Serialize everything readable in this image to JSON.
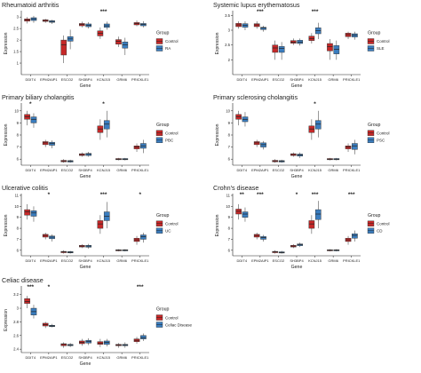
{
  "colors": {
    "control": "#c62828",
    "case": "#3a7dbf",
    "axis": "#222222"
  },
  "common": {
    "genes": [
      "DDIT4",
      "EPM2AIP1",
      "ESCO2",
      "SH3BP4",
      "KCNJ15",
      "GRM6",
      "PRICKLE1"
    ],
    "xlabel": "Gene",
    "ylabel": "Expression",
    "legend_title": "Group"
  },
  "chart_data": [
    {
      "type": "box",
      "title": "Rheumatoid arthritis",
      "case_label": "RA",
      "sig": [
        "",
        "",
        "",
        "",
        "***",
        "",
        ""
      ],
      "ylim": [
        0.5,
        3.2
      ],
      "yticks": [
        1.0,
        1.5,
        2.0,
        2.5,
        3.0
      ],
      "series": [
        {
          "name": "Control",
          "values": [
            [
              2.72,
              2.82,
              2.87,
              2.92,
              3.0
            ],
            [
              2.75,
              2.81,
              2.85,
              2.88,
              2.92
            ],
            [
              1.0,
              1.35,
              1.8,
              2.0,
              2.2
            ],
            [
              2.55,
              2.62,
              2.68,
              2.72,
              2.8
            ],
            [
              2.05,
              2.18,
              2.3,
              2.4,
              2.55
            ],
            [
              1.7,
              1.82,
              1.95,
              2.02,
              2.15
            ],
            [
              2.6,
              2.66,
              2.72,
              2.76,
              2.85
            ]
          ]
        },
        {
          "name": "RA",
          "values": [
            [
              2.75,
              2.85,
              2.92,
              2.97,
              3.05
            ],
            [
              2.7,
              2.77,
              2.81,
              2.84,
              2.88
            ],
            [
              1.6,
              1.95,
              2.05,
              2.15,
              2.45
            ],
            [
              2.5,
              2.58,
              2.64,
              2.7,
              2.78
            ],
            [
              2.45,
              2.55,
              2.62,
              2.7,
              2.8
            ],
            [
              1.35,
              1.65,
              1.8,
              1.92,
              2.1
            ],
            [
              2.55,
              2.62,
              2.68,
              2.72,
              2.82
            ]
          ]
        }
      ]
    },
    {
      "type": "box",
      "title": "Systemic lupus erythematosus",
      "case_label": "SLE",
      "sig": [
        "",
        "***",
        "",
        "",
        "***",
        "",
        ""
      ],
      "ylim": [
        1.5,
        3.6
      ],
      "yticks": [
        2.0,
        2.5,
        3.0,
        3.5
      ],
      "series": [
        {
          "name": "Control",
          "values": [
            [
              3.05,
              3.12,
              3.18,
              3.23,
              3.3
            ],
            [
              3.05,
              3.12,
              3.18,
              3.22,
              3.3
            ],
            [
              2.0,
              2.25,
              2.4,
              2.5,
              2.65
            ],
            [
              2.5,
              2.56,
              2.6,
              2.65,
              2.72
            ],
            [
              2.55,
              2.65,
              2.72,
              2.8,
              2.9
            ],
            [
              2.0,
              2.3,
              2.45,
              2.55,
              2.7
            ],
            [
              2.7,
              2.78,
              2.85,
              2.9,
              2.95
            ]
          ]
        },
        {
          "name": "SLE",
          "values": [
            [
              3.0,
              3.1,
              3.17,
              3.22,
              3.3
            ],
            [
              2.95,
              3.02,
              3.07,
              3.1,
              3.15
            ],
            [
              2.0,
              2.25,
              2.38,
              2.45,
              2.6
            ],
            [
              2.48,
              2.55,
              2.6,
              2.66,
              2.72
            ],
            [
              2.7,
              2.88,
              2.98,
              3.08,
              3.25
            ],
            [
              2.0,
              2.2,
              2.35,
              2.48,
              2.65
            ],
            [
              2.68,
              2.77,
              2.83,
              2.88,
              2.95
            ]
          ]
        }
      ]
    },
    {
      "type": "box",
      "title": "Primary biliary cholangitis",
      "case_label": "PBC",
      "sig": [
        "*",
        "",
        "",
        "",
        "*",
        "",
        ""
      ],
      "ylim": [
        5.5,
        10.5
      ],
      "yticks": [
        6,
        7,
        8,
        9,
        10
      ],
      "series": [
        {
          "name": "Control",
          "values": [
            [
              8.8,
              9.3,
              9.5,
              9.7,
              10.0
            ],
            [
              7.0,
              7.2,
              7.35,
              7.45,
              7.6
            ],
            [
              5.7,
              5.78,
              5.85,
              5.9,
              6.0
            ],
            [
              6.2,
              6.3,
              6.38,
              6.45,
              6.55
            ],
            [
              7.6,
              8.2,
              8.5,
              8.75,
              9.3
            ],
            [
              5.9,
              5.95,
              6.0,
              6.05,
              6.1
            ],
            [
              6.6,
              6.85,
              7.0,
              7.1,
              7.3
            ]
          ]
        },
        {
          "name": "PBC",
          "values": [
            [
              8.6,
              9.0,
              9.3,
              9.5,
              9.8
            ],
            [
              6.9,
              7.15,
              7.3,
              7.4,
              7.55
            ],
            [
              5.7,
              5.76,
              5.82,
              5.88,
              5.95
            ],
            [
              6.2,
              6.3,
              6.4,
              6.48,
              6.6
            ],
            [
              7.8,
              8.5,
              8.9,
              9.2,
              10.0
            ],
            [
              5.9,
              5.95,
              6.0,
              6.05,
              6.1
            ],
            [
              6.5,
              6.9,
              7.1,
              7.3,
              7.6
            ]
          ]
        }
      ]
    },
    {
      "type": "box",
      "title": "Primary sclerosing cholangitis",
      "case_label": "PSC",
      "sig": [
        "",
        "",
        "",
        "",
        "*",
        "",
        ""
      ],
      "ylim": [
        5.5,
        10.5
      ],
      "yticks": [
        6,
        7,
        8,
        9,
        10
      ],
      "series": [
        {
          "name": "Control",
          "values": [
            [
              8.8,
              9.3,
              9.5,
              9.7,
              10.0
            ],
            [
              7.0,
              7.2,
              7.35,
              7.45,
              7.6
            ],
            [
              5.7,
              5.78,
              5.85,
              5.9,
              6.0
            ],
            [
              6.2,
              6.3,
              6.38,
              6.45,
              6.55
            ],
            [
              7.6,
              8.2,
              8.5,
              8.75,
              9.3
            ],
            [
              5.9,
              5.95,
              6.0,
              6.05,
              6.1
            ],
            [
              6.6,
              6.85,
              7.0,
              7.1,
              7.3
            ]
          ]
        },
        {
          "name": "PSC",
          "values": [
            [
              8.7,
              9.1,
              9.3,
              9.5,
              9.9
            ],
            [
              6.8,
              7.0,
              7.2,
              7.35,
              7.5
            ],
            [
              5.7,
              5.76,
              5.82,
              5.88,
              5.95
            ],
            [
              6.1,
              6.25,
              6.35,
              6.42,
              6.55
            ],
            [
              7.8,
              8.5,
              8.9,
              9.2,
              10.0
            ],
            [
              5.9,
              5.95,
              6.0,
              6.05,
              6.1
            ],
            [
              6.4,
              6.8,
              7.1,
              7.3,
              7.6
            ]
          ]
        }
      ]
    },
    {
      "type": "box",
      "title": "Ulcerative colitis",
      "case_label": "UC",
      "sig": [
        "",
        "*",
        "",
        "",
        "***",
        "",
        "*"
      ],
      "ylim": [
        5.5,
        11.0
      ],
      "yticks": [
        6,
        7,
        8,
        9,
        10,
        11
      ],
      "series": [
        {
          "name": "Control",
          "values": [
            [
              8.8,
              9.2,
              9.5,
              9.7,
              10.2
            ],
            [
              7.0,
              7.2,
              7.35,
              7.45,
              7.6
            ],
            [
              5.7,
              5.78,
              5.85,
              5.9,
              6.0
            ],
            [
              6.2,
              6.3,
              6.38,
              6.45,
              6.55
            ],
            [
              7.5,
              8.0,
              8.4,
              8.7,
              9.2
            ],
            [
              5.9,
              5.95,
              6.0,
              6.05,
              6.1
            ],
            [
              6.5,
              6.8,
              6.95,
              7.1,
              7.3
            ]
          ]
        },
        {
          "name": "UC",
          "values": [
            [
              8.6,
              9.1,
              9.4,
              9.6,
              10.0
            ],
            [
              6.8,
              7.05,
              7.2,
              7.3,
              7.45
            ],
            [
              5.7,
              5.76,
              5.82,
              5.88,
              5.95
            ],
            [
              6.15,
              6.28,
              6.38,
              6.45,
              6.58
            ],
            [
              8.0,
              8.7,
              9.1,
              9.5,
              10.4
            ],
            [
              5.9,
              5.95,
              6.0,
              6.05,
              6.1
            ],
            [
              6.7,
              7.0,
              7.25,
              7.4,
              7.6
            ]
          ]
        }
      ]
    },
    {
      "type": "box",
      "title": "Crohn's disease",
      "case_label": "CD",
      "sig": [
        "**",
        "***",
        "",
        "*",
        "***",
        "",
        "***"
      ],
      "ylim": [
        5.5,
        11.0
      ],
      "yticks": [
        6,
        7,
        8,
        9,
        10,
        11
      ],
      "series": [
        {
          "name": "Control",
          "values": [
            [
              8.8,
              9.3,
              9.55,
              9.75,
              10.2
            ],
            [
              7.0,
              7.2,
              7.35,
              7.45,
              7.6
            ],
            [
              5.7,
              5.78,
              5.85,
              5.9,
              6.0
            ],
            [
              6.2,
              6.3,
              6.38,
              6.45,
              6.55
            ],
            [
              7.5,
              8.0,
              8.4,
              8.7,
              9.2
            ],
            [
              5.9,
              5.95,
              6.0,
              6.05,
              6.1
            ],
            [
              6.5,
              6.8,
              6.95,
              7.1,
              7.3
            ]
          ]
        },
        {
          "name": "CD",
          "values": [
            [
              8.6,
              9.0,
              9.3,
              9.5,
              9.9
            ],
            [
              6.8,
              7.0,
              7.15,
              7.25,
              7.4
            ],
            [
              5.7,
              5.75,
              5.8,
              5.86,
              5.95
            ],
            [
              6.3,
              6.42,
              6.5,
              6.58,
              6.7
            ],
            [
              8.0,
              8.8,
              9.3,
              9.7,
              10.5
            ],
            [
              5.9,
              5.95,
              6.0,
              6.05,
              6.1
            ],
            [
              6.8,
              7.1,
              7.35,
              7.5,
              7.8
            ]
          ]
        }
      ]
    },
    {
      "type": "box",
      "title": "Celiac disease",
      "case_label": "Celiac Disease",
      "sig": [
        "***",
        "*",
        "",
        "",
        "",
        "",
        "***"
      ],
      "ylim": [
        2.35,
        3.3
      ],
      "yticks": [
        2.4,
        2.6,
        2.8,
        3.0,
        3.2
      ],
      "series": [
        {
          "name": "Control",
          "values": [
            [
              3.0,
              3.07,
              3.1,
              3.14,
              3.18
            ],
            [
              2.71,
              2.74,
              2.76,
              2.78,
              2.8
            ],
            [
              2.42,
              2.45,
              2.47,
              2.48,
              2.5
            ],
            [
              2.45,
              2.48,
              2.5,
              2.52,
              2.55
            ],
            [
              2.43,
              2.47,
              2.49,
              2.51,
              2.55
            ],
            [
              2.42,
              2.45,
              2.46,
              2.47,
              2.49
            ],
            [
              2.48,
              2.51,
              2.53,
              2.55,
              2.58
            ]
          ]
        },
        {
          "name": "Celiac Disease",
          "values": [
            [
              2.85,
              2.9,
              2.95,
              3.0,
              3.05
            ],
            [
              2.72,
              2.73,
              2.74,
              2.75,
              2.77
            ],
            [
              2.43,
              2.45,
              2.46,
              2.47,
              2.49
            ],
            [
              2.46,
              2.49,
              2.51,
              2.53,
              2.56
            ],
            [
              2.44,
              2.47,
              2.5,
              2.52,
              2.55
            ],
            [
              2.42,
              2.45,
              2.46,
              2.47,
              2.5
            ],
            [
              2.52,
              2.55,
              2.57,
              2.6,
              2.63
            ]
          ]
        }
      ]
    }
  ]
}
